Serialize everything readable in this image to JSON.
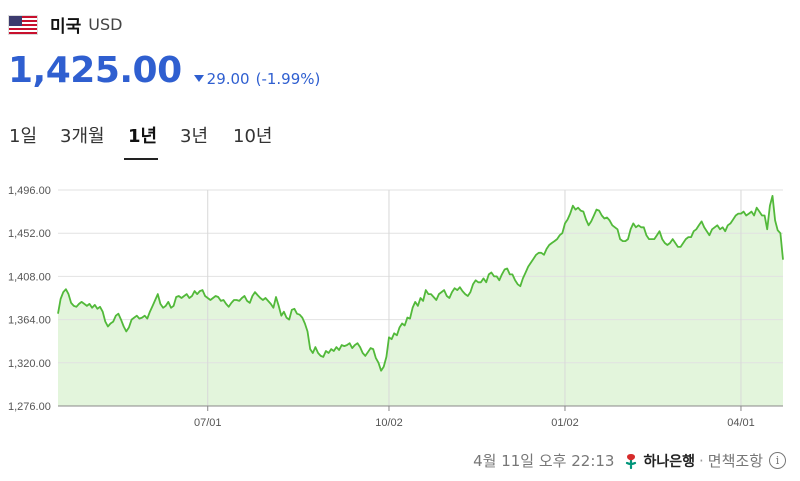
{
  "header": {
    "country": "미국",
    "currency": "USD",
    "flag_icon": "us-flag-icon"
  },
  "quote": {
    "price": "1,425.00",
    "change": "29.00",
    "change_pct": "(-1.99%)",
    "direction": "down",
    "color": "#2f5fd0"
  },
  "tabs": [
    {
      "label": "1일",
      "active": false
    },
    {
      "label": "3개월",
      "active": false
    },
    {
      "label": "1년",
      "active": true
    },
    {
      "label": "3년",
      "active": false
    },
    {
      "label": "10년",
      "active": false
    }
  ],
  "footer": {
    "timestamp": "4월 11일 오후 22:13",
    "bank": "하나은행",
    "separator": "·",
    "disclaimer": "면책조항",
    "info_icon": "info-icon"
  },
  "chart_data": {
    "type": "area",
    "line_color": "#52b93a",
    "fill_color": "#e3f5dc",
    "grid": true,
    "y_ticks": [
      "1,496.00",
      "1,452.00",
      "1,408.00",
      "1,364.00",
      "1,320.00",
      "1,276.00"
    ],
    "y_tick_values": [
      1496,
      1452,
      1408,
      1364,
      1320,
      1276
    ],
    "x_ticks": [
      "07/01",
      "10/02",
      "01/02",
      "04/01"
    ],
    "ylim": [
      1276,
      1496
    ],
    "y": [
      1370,
      1385,
      1392,
      1395,
      1390,
      1381,
      1378,
      1377,
      1380,
      1382,
      1380,
      1378,
      1380,
      1376,
      1379,
      1375,
      1377,
      1372,
      1362,
      1357,
      1360,
      1362,
      1368,
      1370,
      1364,
      1357,
      1352,
      1356,
      1364,
      1366,
      1368,
      1365,
      1366,
      1368,
      1365,
      1372,
      1378,
      1384,
      1390,
      1380,
      1376,
      1378,
      1382,
      1376,
      1378,
      1387,
      1388,
      1386,
      1388,
      1390,
      1386,
      1388,
      1393,
      1390,
      1393,
      1394,
      1388,
      1386,
      1384,
      1386,
      1388,
      1387,
      1383,
      1384,
      1380,
      1377,
      1381,
      1384,
      1384,
      1383,
      1386,
      1388,
      1383,
      1381,
      1388,
      1392,
      1389,
      1386,
      1384,
      1386,
      1383,
      1380,
      1376,
      1387,
      1378,
      1368,
      1372,
      1366,
      1364,
      1374,
      1375,
      1370,
      1369,
      1366,
      1360,
      1352,
      1334,
      1330,
      1336,
      1330,
      1327,
      1326,
      1332,
      1330,
      1334,
      1332,
      1336,
      1333,
      1338,
      1337,
      1338,
      1340,
      1335,
      1338,
      1340,
      1336,
      1330,
      1327,
      1331,
      1335,
      1334,
      1325,
      1320,
      1312,
      1316,
      1326,
      1346,
      1344,
      1350,
      1348,
      1356,
      1360,
      1358,
      1366,
      1365,
      1376,
      1382,
      1378,
      1386,
      1383,
      1394,
      1390,
      1390,
      1387,
      1384,
      1390,
      1392,
      1394,
      1388,
      1386,
      1392,
      1396,
      1394,
      1397,
      1393,
      1390,
      1388,
      1392,
      1400,
      1404,
      1402,
      1402,
      1406,
      1402,
      1410,
      1412,
      1408,
      1408,
      1404,
      1410,
      1415,
      1416,
      1410,
      1410,
      1404,
      1400,
      1398,
      1406,
      1412,
      1418,
      1422,
      1426,
      1430,
      1432,
      1432,
      1430,
      1436,
      1440,
      1442,
      1444,
      1446,
      1450,
      1452,
      1462,
      1466,
      1472,
      1480,
      1476,
      1478,
      1475,
      1474,
      1466,
      1460,
      1464,
      1470,
      1476,
      1475,
      1470,
      1467,
      1468,
      1465,
      1460,
      1458,
      1456,
      1446,
      1444,
      1444,
      1446,
      1456,
      1462,
      1458,
      1460,
      1458,
      1458,
      1450,
      1446,
      1446,
      1446,
      1450,
      1454,
      1446,
      1442,
      1440,
      1442,
      1446,
      1442,
      1438,
      1438,
      1442,
      1446,
      1448,
      1448,
      1454,
      1456,
      1460,
      1464,
      1458,
      1454,
      1450,
      1456,
      1458,
      1460,
      1456,
      1458,
      1454,
      1460,
      1462,
      1466,
      1470,
      1472,
      1472,
      1474,
      1470,
      1472,
      1474,
      1470,
      1478,
      1474,
      1470,
      1470,
      1456,
      1480,
      1490,
      1465,
      1455,
      1452,
      1425
    ],
    "x_tick_indices": [
      57,
      126,
      193,
      260
    ]
  }
}
